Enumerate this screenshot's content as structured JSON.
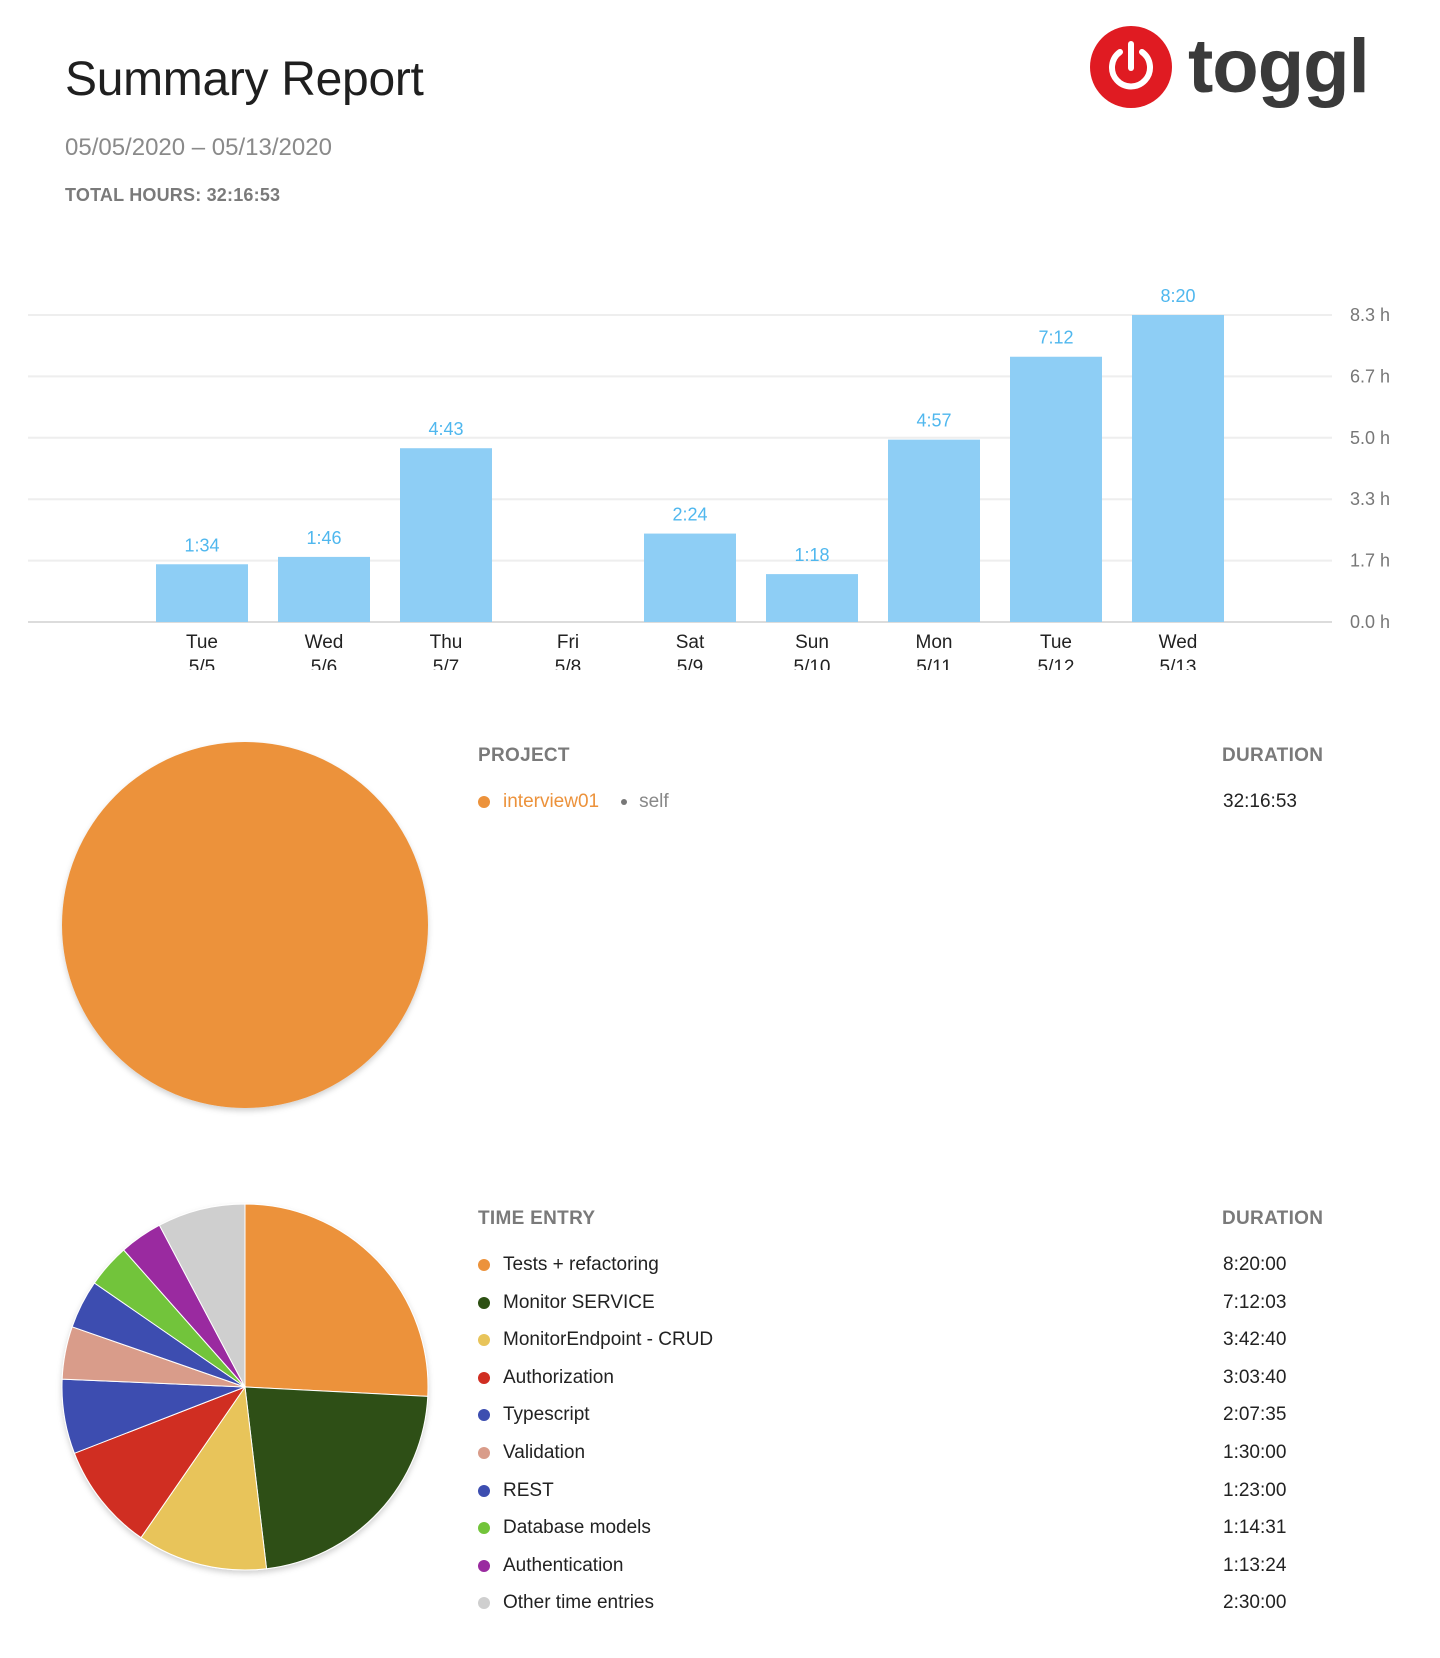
{
  "header": {
    "title": "Summary Report",
    "date_range": "05/05/2020 – 05/13/2020",
    "total_label": "TOTAL HOURS: 32:16:53",
    "logo_text": "toggl",
    "logo_color": "#e01b22"
  },
  "chart_data": [
    {
      "type": "bar",
      "categories": [
        "Tue 5/5",
        "Wed 5/6",
        "Thu 5/7",
        "Fri 5/8",
        "Sat 5/9",
        "Sun 5/10",
        "Mon 5/11",
        "Tue 5/12",
        "Wed 5/13"
      ],
      "category_lines": [
        [
          "Tue",
          "5/5"
        ],
        [
          "Wed",
          "5/6"
        ],
        [
          "Thu",
          "5/7"
        ],
        [
          "Fri",
          "5/8"
        ],
        [
          "Sat",
          "5/9"
        ],
        [
          "Sun",
          "5/10"
        ],
        [
          "Mon",
          "5/11"
        ],
        [
          "Tue",
          "5/12"
        ],
        [
          "Wed",
          "5/13"
        ]
      ],
      "values": [
        1.567,
        1.767,
        4.717,
        0,
        2.4,
        1.3,
        4.95,
        7.2,
        8.333
      ],
      "value_labels": [
        "1:34",
        "1:46",
        "4:43",
        "",
        "2:24",
        "1:18",
        "4:57",
        "7:12",
        "8:20"
      ],
      "yticks": [
        "0.0 h",
        "1.7 h",
        "3.3 h",
        "5.0 h",
        "6.7 h",
        "8.3 h"
      ],
      "ytick_values": [
        0,
        1.667,
        3.333,
        5.0,
        6.667,
        8.333
      ],
      "ylim": [
        0,
        8.333
      ],
      "bar_color": "#8ecef5",
      "label_color": "#4fb7ee",
      "grid": true,
      "title": "",
      "xlabel": "",
      "ylabel": ""
    },
    {
      "type": "pie",
      "header": "PROJECT",
      "duration_header": "DURATION",
      "slices": [
        {
          "label": "interview01",
          "client": "self",
          "duration": "32:16:53",
          "value": 32.281,
          "color": "#ec923b"
        }
      ]
    },
    {
      "type": "pie",
      "header": "TIME ENTRY",
      "duration_header": "DURATION",
      "slices": [
        {
          "label": "Tests + refactoring",
          "duration": "8:20:00",
          "value": 8.333,
          "color": "#ec923b"
        },
        {
          "label": "Monitor SERVICE",
          "duration": "7:12:03",
          "value": 7.201,
          "color": "#2d5013"
        },
        {
          "label": "MonitorEndpoint - CRUD",
          "duration": "3:42:40",
          "value": 3.711,
          "color": "#e8c45a"
        },
        {
          "label": "Authorization",
          "duration": "3:03:40",
          "value": 3.061,
          "color": "#d02e22"
        },
        {
          "label": "Typescript",
          "duration": "2:07:35",
          "value": 2.126,
          "color": "#3d4eb0"
        },
        {
          "label": "Validation",
          "duration": "1:30:00",
          "value": 1.5,
          "color": "#d99c8a"
        },
        {
          "label": "REST",
          "duration": "1:23:00",
          "value": 1.383,
          "color": "#3d4eb0"
        },
        {
          "label": "Database models",
          "duration": "1:14:31",
          "value": 1.242,
          "color": "#72c43a"
        },
        {
          "label": "Authentication",
          "duration": "1:13:24",
          "value": 1.223,
          "color": "#9a2ba0"
        },
        {
          "label": "Other time entries",
          "duration": "2:30:00",
          "value": 2.5,
          "color": "#cfcfcf"
        }
      ]
    }
  ]
}
